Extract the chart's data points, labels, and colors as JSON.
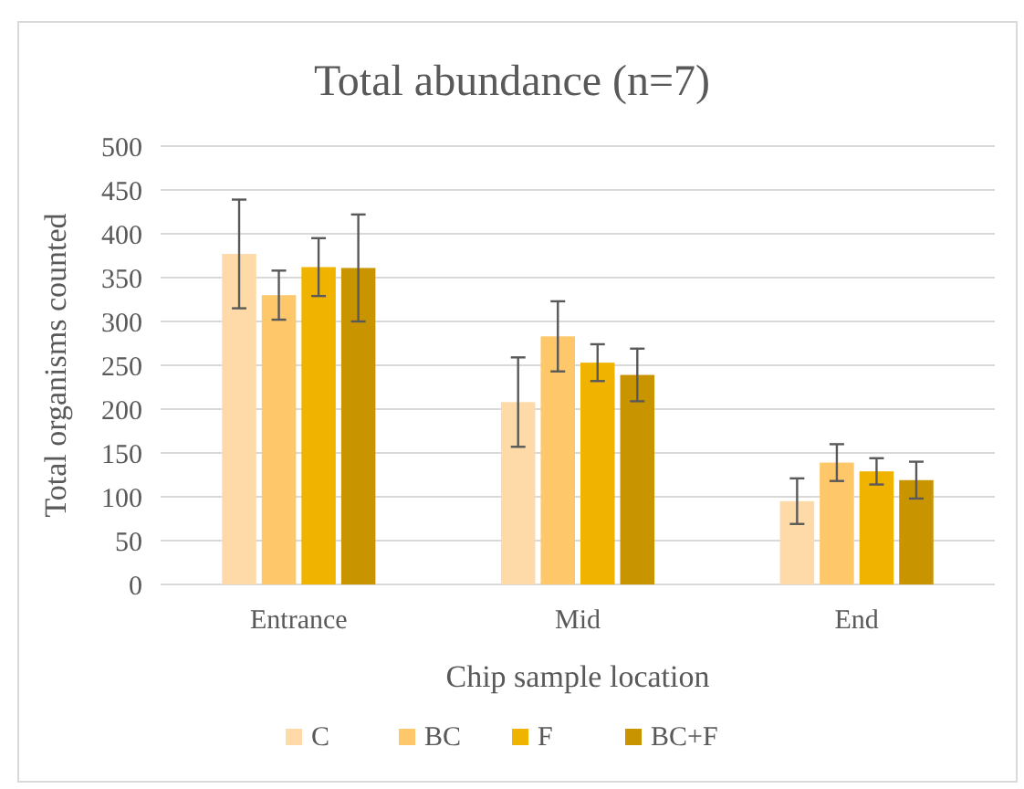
{
  "chart_data": {
    "type": "bar",
    "title": "Total abundance (n=7)",
    "xlabel": "Chip sample location",
    "ylabel": "Total organisms counted",
    "categories": [
      "Entrance",
      "Mid",
      "End"
    ],
    "series": [
      {
        "name": "C",
        "color": "#fedaa8",
        "values": [
          377,
          208,
          95
        ],
        "errors": [
          62,
          51,
          26
        ]
      },
      {
        "name": "BC",
        "color": "#fec76a",
        "values": [
          330,
          283,
          139
        ],
        "errors": [
          28,
          40,
          21
        ]
      },
      {
        "name": "F",
        "color": "#f0b400",
        "values": [
          362,
          253,
          129
        ],
        "errors": [
          33,
          21,
          15
        ]
      },
      {
        "name": "BC+F",
        "color": "#c89500",
        "values": [
          361,
          239,
          119
        ],
        "errors": [
          61,
          30,
          21
        ]
      }
    ],
    "ylim": [
      0,
      500
    ],
    "yticks": [
      0,
      50,
      100,
      150,
      200,
      250,
      300,
      350,
      400,
      450,
      500
    ],
    "grid": "y",
    "legend": "bottom"
  }
}
